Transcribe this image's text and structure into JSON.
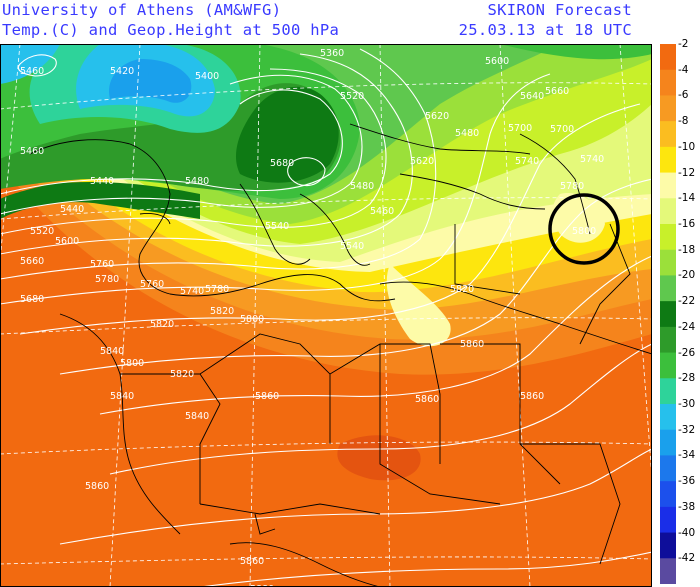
{
  "header": {
    "left_line1": "University of Athens (AM&WFG)",
    "left_line2": "Temp.(C) and Geop.Height at 500 hPa",
    "right_line1": "SKIRON Forecast",
    "right_line2": "25.03.13 at 18 UTC"
  },
  "colorbar": {
    "labels": [
      "-2",
      "-4",
      "-6",
      "-8",
      "-10",
      "-12",
      "-14",
      "-16",
      "-18",
      "-20",
      "-22",
      "-24",
      "-26",
      "-28",
      "-30",
      "-32",
      "-34",
      "-36",
      "-38",
      "-40",
      "-42"
    ],
    "colors": [
      "#f26a10",
      "#f5841c",
      "#f79a22",
      "#fbbd20",
      "#fde60e",
      "#fdfba8",
      "#e4f97a",
      "#c8f02a",
      "#9be03a",
      "#5fc84e",
      "#0e7a14",
      "#2e9b2a",
      "#3cbf3c",
      "#2ed39a",
      "#26c0ec",
      "#1aa0ec",
      "#1c78ec",
      "#1c50ec",
      "#1a2ee8",
      "#0e0e9a",
      "#5a4aa0"
    ]
  },
  "contours": {
    "labels": [
      "5460",
      "5420",
      "5400",
      "5360",
      "5600",
      "5640",
      "5660",
      "5700",
      "5700",
      "5740",
      "5740",
      "5780",
      "5800",
      "5520",
      "5620",
      "5480",
      "5460",
      "5440",
      "5440",
      "5480",
      "5520",
      "5600",
      "5540",
      "5540",
      "5460",
      "5480",
      "5620",
      "5680",
      "5660",
      "5680",
      "5760",
      "5780",
      "5760",
      "5740",
      "5780",
      "5800",
      "5820",
      "5820",
      "5840",
      "5800",
      "5840",
      "5840",
      "5820",
      "5860",
      "5860",
      "5820",
      "5860",
      "5860",
      "5860",
      "5880",
      "5860"
    ]
  }
}
